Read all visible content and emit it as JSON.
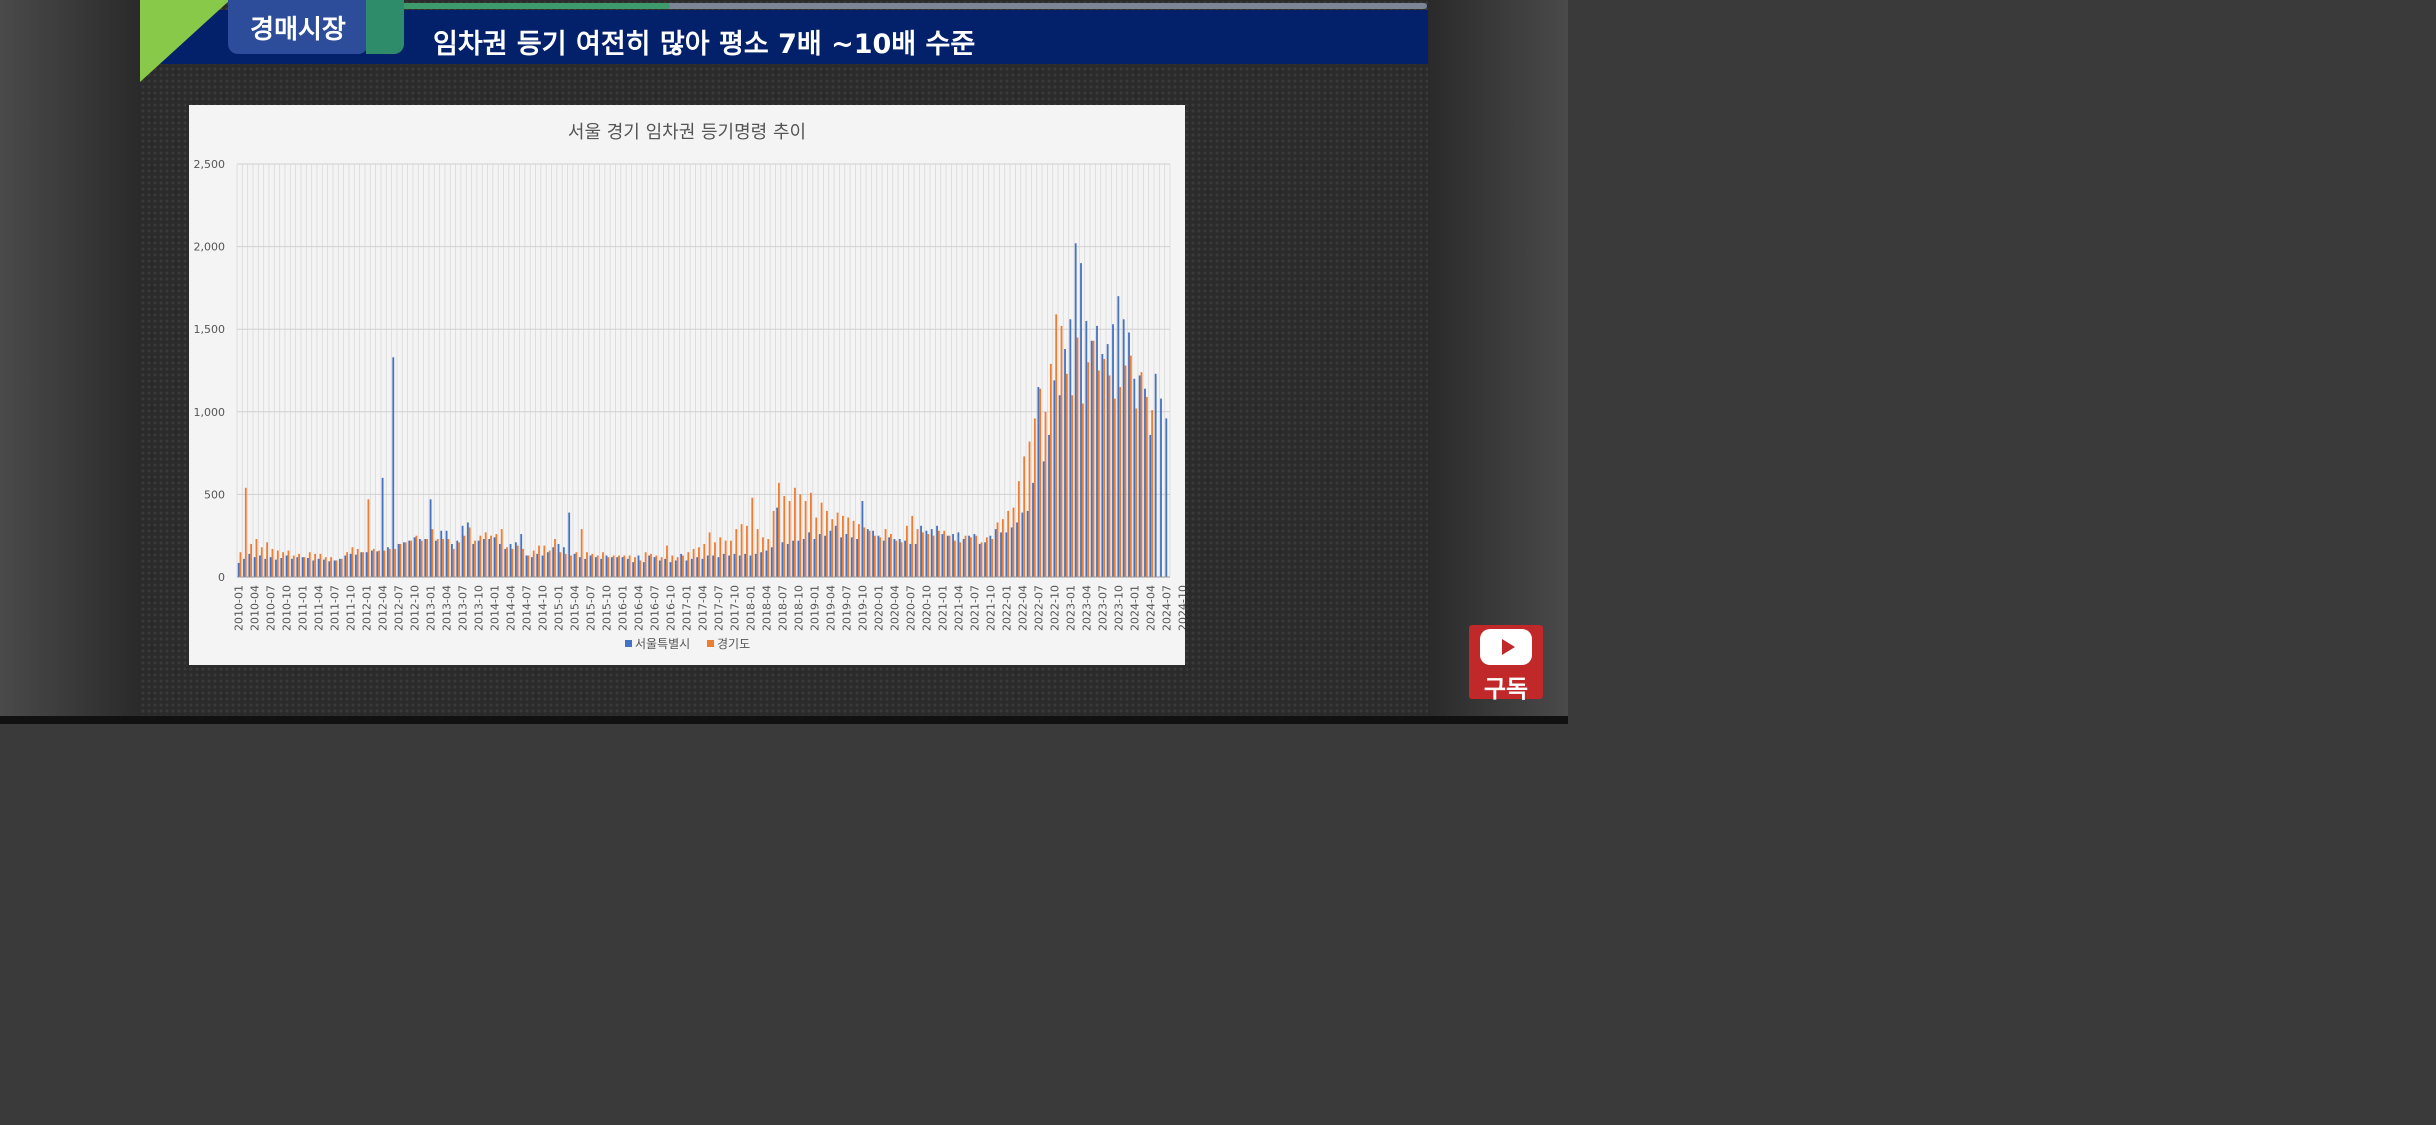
{
  "header": {
    "tag": "경매시장",
    "headline": "임차권 등기 여전히  많아  평소  7배 ~10배 수준",
    "progress": 0.27
  },
  "subscribe": {
    "label": "구독",
    "icon": "youtube-play-icon"
  },
  "colors": {
    "seoul": "#4472c4",
    "gyeonggi": "#ed7d31",
    "header": "#03206b",
    "accent": "#88c94a"
  },
  "chart_data": {
    "type": "bar",
    "title": "서울 경기 임차권 등기명령 추이",
    "ylim": [
      0,
      2500
    ],
    "yticks": [
      "0",
      "500",
      "1,000",
      "1,500",
      "2,000",
      "2,500"
    ],
    "x_start": "2010-01",
    "x_tick_every_months": 3,
    "xticks": [
      "2010-01",
      "2010-04",
      "2010-07",
      "2010-10",
      "2011-01",
      "2011-04",
      "2011-07",
      "2011-10",
      "2012-01",
      "2012-04",
      "2012-07",
      "2012-10",
      "2013-01",
      "2013-04",
      "2013-07",
      "2013-10",
      "2014-01",
      "2014-04",
      "2014-07",
      "2014-10",
      "2015-01",
      "2015-04",
      "2015-07",
      "2015-10",
      "2016-01",
      "2016-04",
      "2016-07",
      "2016-10",
      "2017-01",
      "2017-04",
      "2017-07",
      "2017-10",
      "2018-01",
      "2018-04",
      "2018-07",
      "2018-10",
      "2019-01",
      "2019-04",
      "2019-07",
      "2019-10",
      "2020-01",
      "2020-04",
      "2020-07",
      "2020-10",
      "2021-01",
      "2021-04",
      "2021-07",
      "2021-10",
      "2022-01",
      "2022-04",
      "2022-07",
      "2022-10",
      "2023-01",
      "2023-04",
      "2023-07",
      "2023-10",
      "2024-01",
      "2024-04",
      "2024-07",
      "2024-10"
    ],
    "grid": true,
    "legend_position": "bottom",
    "series": [
      {
        "name": "서울특별시",
        "color": "#4472c4",
        "values": [
          85,
          110,
          140,
          120,
          130,
          110,
          120,
          105,
          115,
          130,
          110,
          120,
          120,
          115,
          100,
          110,
          105,
          95,
          100,
          110,
          130,
          140,
          135,
          150,
          150,
          160,
          155,
          600,
          180,
          1330,
          200,
          210,
          220,
          240,
          230,
          230,
          470,
          220,
          280,
          280,
          200,
          220,
          310,
          330,
          200,
          220,
          230,
          230,
          240,
          200,
          170,
          200,
          210,
          260,
          130,
          120,
          140,
          130,
          150,
          180,
          200,
          180,
          390,
          140,
          120,
          110,
          130,
          120,
          110,
          130,
          120,
          120,
          120,
          110,
          90,
          130,
          90,
          130,
          120,
          100,
          110,
          90,
          100,
          140,
          100,
          110,
          120,
          110,
          130,
          130,
          120,
          140,
          130,
          140,
          130,
          140,
          130,
          140,
          150,
          160,
          180,
          420,
          210,
          200,
          220,
          220,
          230,
          270,
          230,
          260,
          250,
          280,
          310,
          240,
          260,
          240,
          230,
          460,
          290,
          280,
          250,
          220,
          240,
          230,
          230,
          220,
          200,
          200,
          310,
          280,
          290,
          310,
          260,
          250,
          260,
          270,
          230,
          250,
          260,
          200,
          210,
          250,
          290,
          270,
          270,
          300,
          330,
          390,
          400,
          570,
          1150,
          700,
          860,
          1190,
          1100,
          1380,
          1560,
          2020,
          1900,
          1550,
          1430,
          1520,
          1350,
          1410,
          1530,
          1700,
          1560,
          1480,
          1200,
          1220,
          1140,
          860,
          1230,
          1080,
          960
        ]
      },
      {
        "name": "경기도",
        "color": "#ed7d31",
        "values": [
          150,
          540,
          200,
          230,
          180,
          210,
          170,
          160,
          150,
          160,
          130,
          140,
          120,
          150,
          140,
          140,
          120,
          120,
          100,
          110,
          150,
          180,
          170,
          150,
          470,
          170,
          160,
          160,
          170,
          170,
          200,
          210,
          220,
          250,
          220,
          230,
          290,
          230,
          230,
          230,
          170,
          210,
          250,
          300,
          220,
          250,
          270,
          250,
          260,
          290,
          180,
          170,
          190,
          170,
          130,
          160,
          190,
          190,
          160,
          230,
          150,
          140,
          130,
          150,
          290,
          150,
          140,
          130,
          150,
          120,
          130,
          130,
          130,
          130,
          120,
          100,
          150,
          140,
          130,
          120,
          190,
          130,
          120,
          130,
          150,
          170,
          180,
          200,
          270,
          210,
          240,
          220,
          220,
          290,
          320,
          310,
          480,
          290,
          240,
          230,
          400,
          570,
          490,
          460,
          540,
          500,
          460,
          510,
          360,
          450,
          400,
          350,
          390,
          370,
          360,
          340,
          320,
          300,
          280,
          250,
          240,
          290,
          260,
          220,
          210,
          310,
          370,
          290,
          270,
          260,
          250,
          280,
          280,
          250,
          220,
          210,
          250,
          240,
          250,
          210,
          240,
          230,
          330,
          350,
          400,
          420,
          580,
          730,
          820,
          960,
          1140,
          1000,
          1290,
          1590,
          1520,
          1230,
          1100,
          1450,
          1050,
          1300,
          1430,
          1250,
          1320,
          1220,
          1080,
          1150,
          1280,
          1340,
          1020,
          1240,
          1090,
          1010
        ]
      }
    ]
  }
}
